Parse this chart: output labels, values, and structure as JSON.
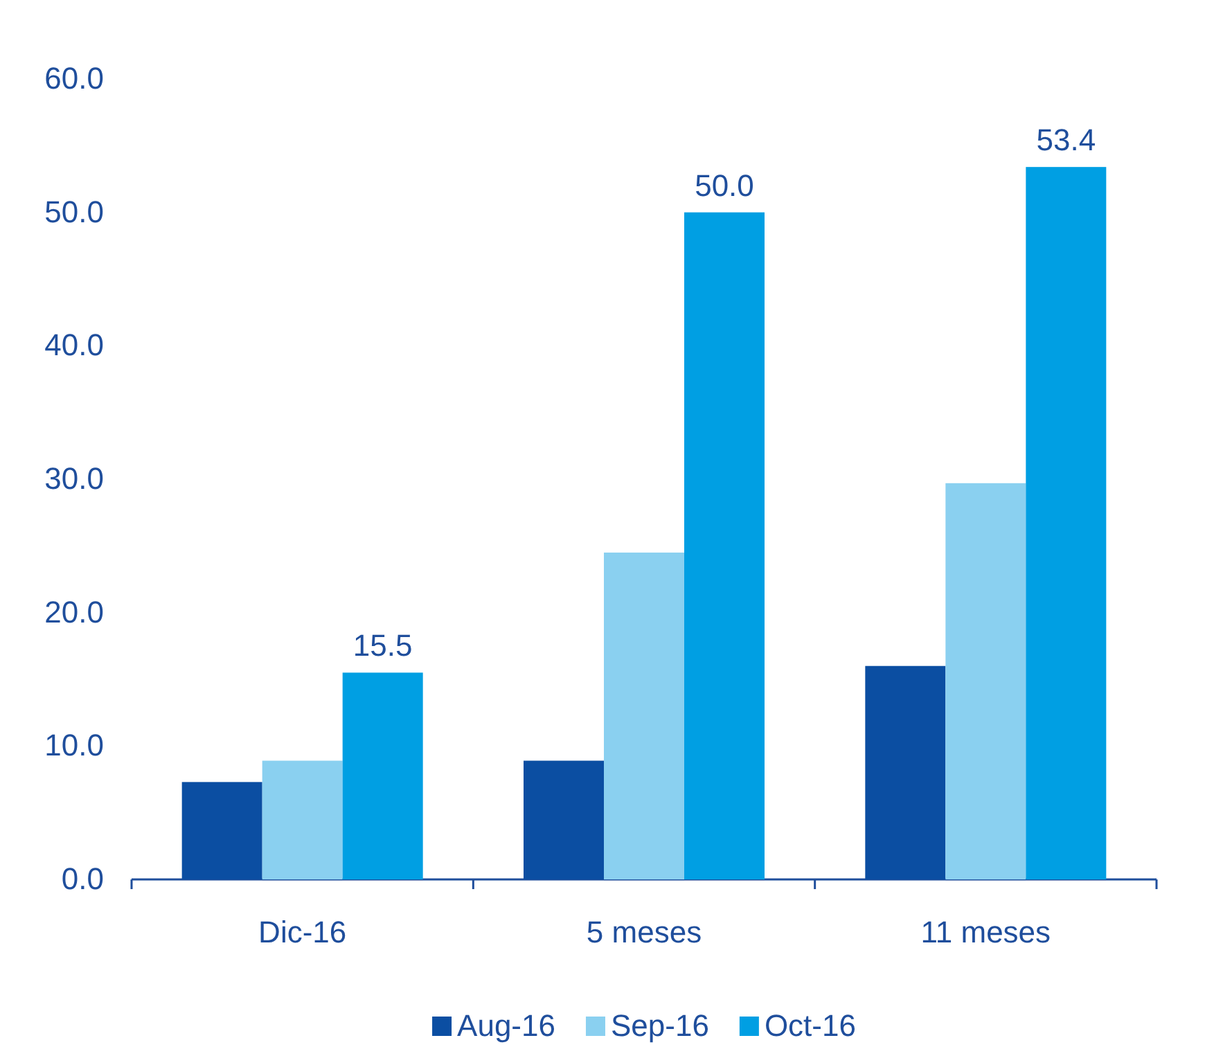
{
  "chart_data": {
    "type": "bar",
    "categories": [
      "Dic-16",
      "5 meses",
      "11 meses"
    ],
    "series": [
      {
        "name": "Aug-16",
        "color": "#0b4ea2",
        "values": [
          7.3,
          8.9,
          16.0
        ]
      },
      {
        "name": "Sep-16",
        "color": "#8ad0f0",
        "values": [
          8.9,
          24.5,
          29.7
        ]
      },
      {
        "name": "Oct-16",
        "color": "#009fe3",
        "values": [
          15.5,
          50.0,
          53.4
        ],
        "value_labels": [
          "15.5",
          "50.0",
          "53.4"
        ]
      }
    ],
    "ylim": [
      0,
      60
    ],
    "yticks": [
      {
        "value": 0,
        "label": "0.0"
      },
      {
        "value": 10,
        "label": "10.0"
      },
      {
        "value": 20,
        "label": "20.0"
      },
      {
        "value": 30,
        "label": "30.0"
      },
      {
        "value": 40,
        "label": "40.0"
      },
      {
        "value": 50,
        "label": "50.0"
      },
      {
        "value": 60,
        "label": "60.0"
      }
    ],
    "grid": false,
    "legend": "bottom"
  }
}
